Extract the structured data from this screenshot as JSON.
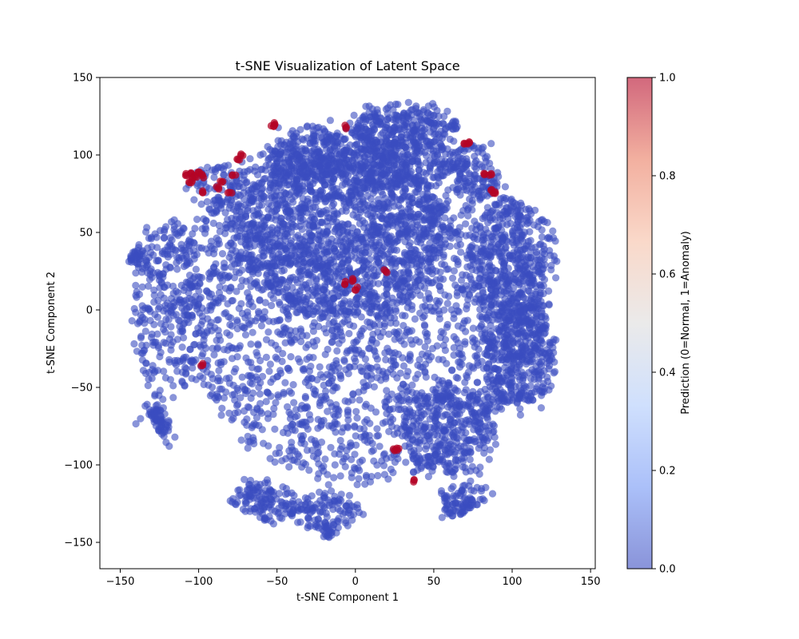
{
  "chart_data": {
    "type": "scatter",
    "title": "t-SNE Visualization of Latent Space",
    "xlabel": "t-SNE Component 1",
    "ylabel": "t-SNE Component 2",
    "xlim": [
      -163,
      153
    ],
    "ylim": [
      -167,
      150
    ],
    "xticks": [
      -150,
      -100,
      -50,
      0,
      50,
      100,
      150
    ],
    "yticks": [
      -150,
      -100,
      -50,
      0,
      50,
      100,
      150
    ],
    "xtick_labels": [
      "−150",
      "−100",
      "−50",
      "0",
      "50",
      "100",
      "150"
    ],
    "ytick_labels": [
      "−150",
      "−100",
      "−50",
      "0",
      "50",
      "100",
      "150"
    ],
    "grid": false,
    "marker_alpha": 0.6,
    "colormap": "coolwarm",
    "colormap_stops": [
      "#3b4cc0",
      "#7396f5",
      "#b0cbfc",
      "#dddcdc",
      "#f6bfa6",
      "#ea7b60",
      "#b40426"
    ],
    "normal_color": "#3b4cc0",
    "anomaly_color": "#b40426",
    "colorbar": {
      "label": "Prediction (0=Normal, 1=Anomaly)",
      "range": [
        0.0,
        1.0
      ],
      "ticks": [
        0.0,
        0.2,
        0.4,
        0.6,
        0.8,
        1.0
      ],
      "tick_labels": [
        "0.0",
        "0.2",
        "0.4",
        "0.6",
        "0.8",
        "1.0"
      ]
    },
    "normal_regions": [
      {
        "cx": 5,
        "cy": 5,
        "rx": 118,
        "ry": 116,
        "n": 2600
      },
      {
        "cx": -10,
        "cy": 50,
        "rx": 70,
        "ry": 55,
        "n": 1200
      },
      {
        "cx": 30,
        "cy": 118,
        "rx": 35,
        "ry": 14,
        "n": 250
      },
      {
        "cx": -30,
        "cy": 100,
        "rx": 25,
        "ry": 18,
        "n": 180
      },
      {
        "cx": 25,
        "cy": 95,
        "rx": 40,
        "ry": 15,
        "n": 200
      },
      {
        "cx": 100,
        "cy": 30,
        "rx": 28,
        "ry": 40,
        "n": 350
      },
      {
        "cx": 105,
        "cy": -30,
        "rx": 22,
        "ry": 35,
        "n": 350
      },
      {
        "cx": -120,
        "cy": 0,
        "rx": 22,
        "ry": 60,
        "n": 300
      },
      {
        "cx": -60,
        "cy": -125,
        "rx": 20,
        "ry": 14,
        "n": 120
      },
      {
        "cx": 70,
        "cy": -125,
        "rx": 16,
        "ry": 12,
        "n": 90
      },
      {
        "cx": -130,
        "cy": -80,
        "rx": 10,
        "ry": 18,
        "n": 70
      },
      {
        "cx": -143,
        "cy": 35,
        "rx": 8,
        "ry": 7,
        "n": 30
      },
      {
        "cx": -90,
        "cy": 80,
        "rx": 15,
        "ry": 15,
        "n": 60
      },
      {
        "cx": 75,
        "cy": 90,
        "rx": 15,
        "ry": 20,
        "n": 80
      },
      {
        "cx": 60,
        "cy": -80,
        "rx": 30,
        "ry": 30,
        "n": 250
      },
      {
        "cx": -20,
        "cy": -130,
        "rx": 25,
        "ry": 12,
        "n": 120
      },
      {
        "cx": -18,
        "cy": -145,
        "rx": 4,
        "ry": 6,
        "n": 20
      }
    ],
    "anomaly_points": [
      [
        -108,
        87
      ],
      [
        -105,
        88
      ],
      [
        -102,
        86
      ],
      [
        -100,
        89
      ],
      [
        -104,
        84
      ],
      [
        -106,
        82
      ],
      [
        -97,
        86
      ],
      [
        -98,
        76
      ],
      [
        -88,
        79
      ],
      [
        -85,
        82
      ],
      [
        -78,
        87
      ],
      [
        -80,
        76
      ],
      [
        -73,
        100
      ],
      [
        -75,
        97
      ],
      [
        -52,
        120
      ],
      [
        -52,
        118
      ],
      [
        -6,
        118
      ],
      [
        19,
        24
      ],
      [
        -2,
        19
      ],
      [
        -7,
        17
      ],
      [
        0,
        14
      ],
      [
        -97,
        -35
      ],
      [
        25,
        -90
      ],
      [
        27,
        -90
      ],
      [
        37,
        -110
      ],
      [
        70,
        107
      ],
      [
        73,
        108
      ],
      [
        83,
        88
      ],
      [
        86,
        87
      ],
      [
        87,
        77
      ],
      [
        89,
        76
      ]
    ]
  }
}
